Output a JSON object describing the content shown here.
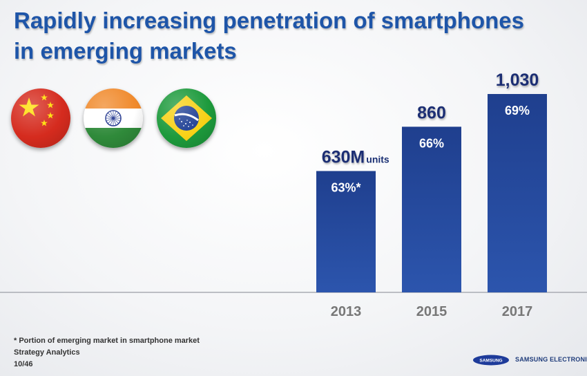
{
  "slide": {
    "title_line1": "Rapidly increasing penetration of smartphones",
    "title_line2": "in emerging markets",
    "footnote": "* Portion of emerging market in smartphone market",
    "source": "Strategy Analytics",
    "page_number": "10/46",
    "logo_wordmark": "SAMSUNG",
    "company_name": "SAMSUNG ELECTRONICS"
  },
  "flags": [
    {
      "name": "china-flag-icon"
    },
    {
      "name": "india-flag-icon"
    },
    {
      "name": "brazil-flag-icon"
    }
  ],
  "colors": {
    "title": "#1e55a8",
    "bar_top": "#1f3f8e",
    "bar_bottom": "#2a4fa6",
    "value_label": "#1a2f73",
    "axis_label": "#777777"
  },
  "chart_data": {
    "type": "bar",
    "categories": [
      "2013",
      "2015",
      "2017"
    ],
    "values": [
      630,
      860,
      1030
    ],
    "value_labels": [
      "630M",
      "860",
      "1,030"
    ],
    "value_unit_suffix": "units",
    "share_labels": [
      "63%*",
      "66%",
      "69%"
    ],
    "share_values": [
      63,
      66,
      69
    ],
    "title": "",
    "xlabel": "",
    "ylabel": "",
    "ylim": [
      0,
      1050
    ],
    "grid": false,
    "legend": "none"
  }
}
